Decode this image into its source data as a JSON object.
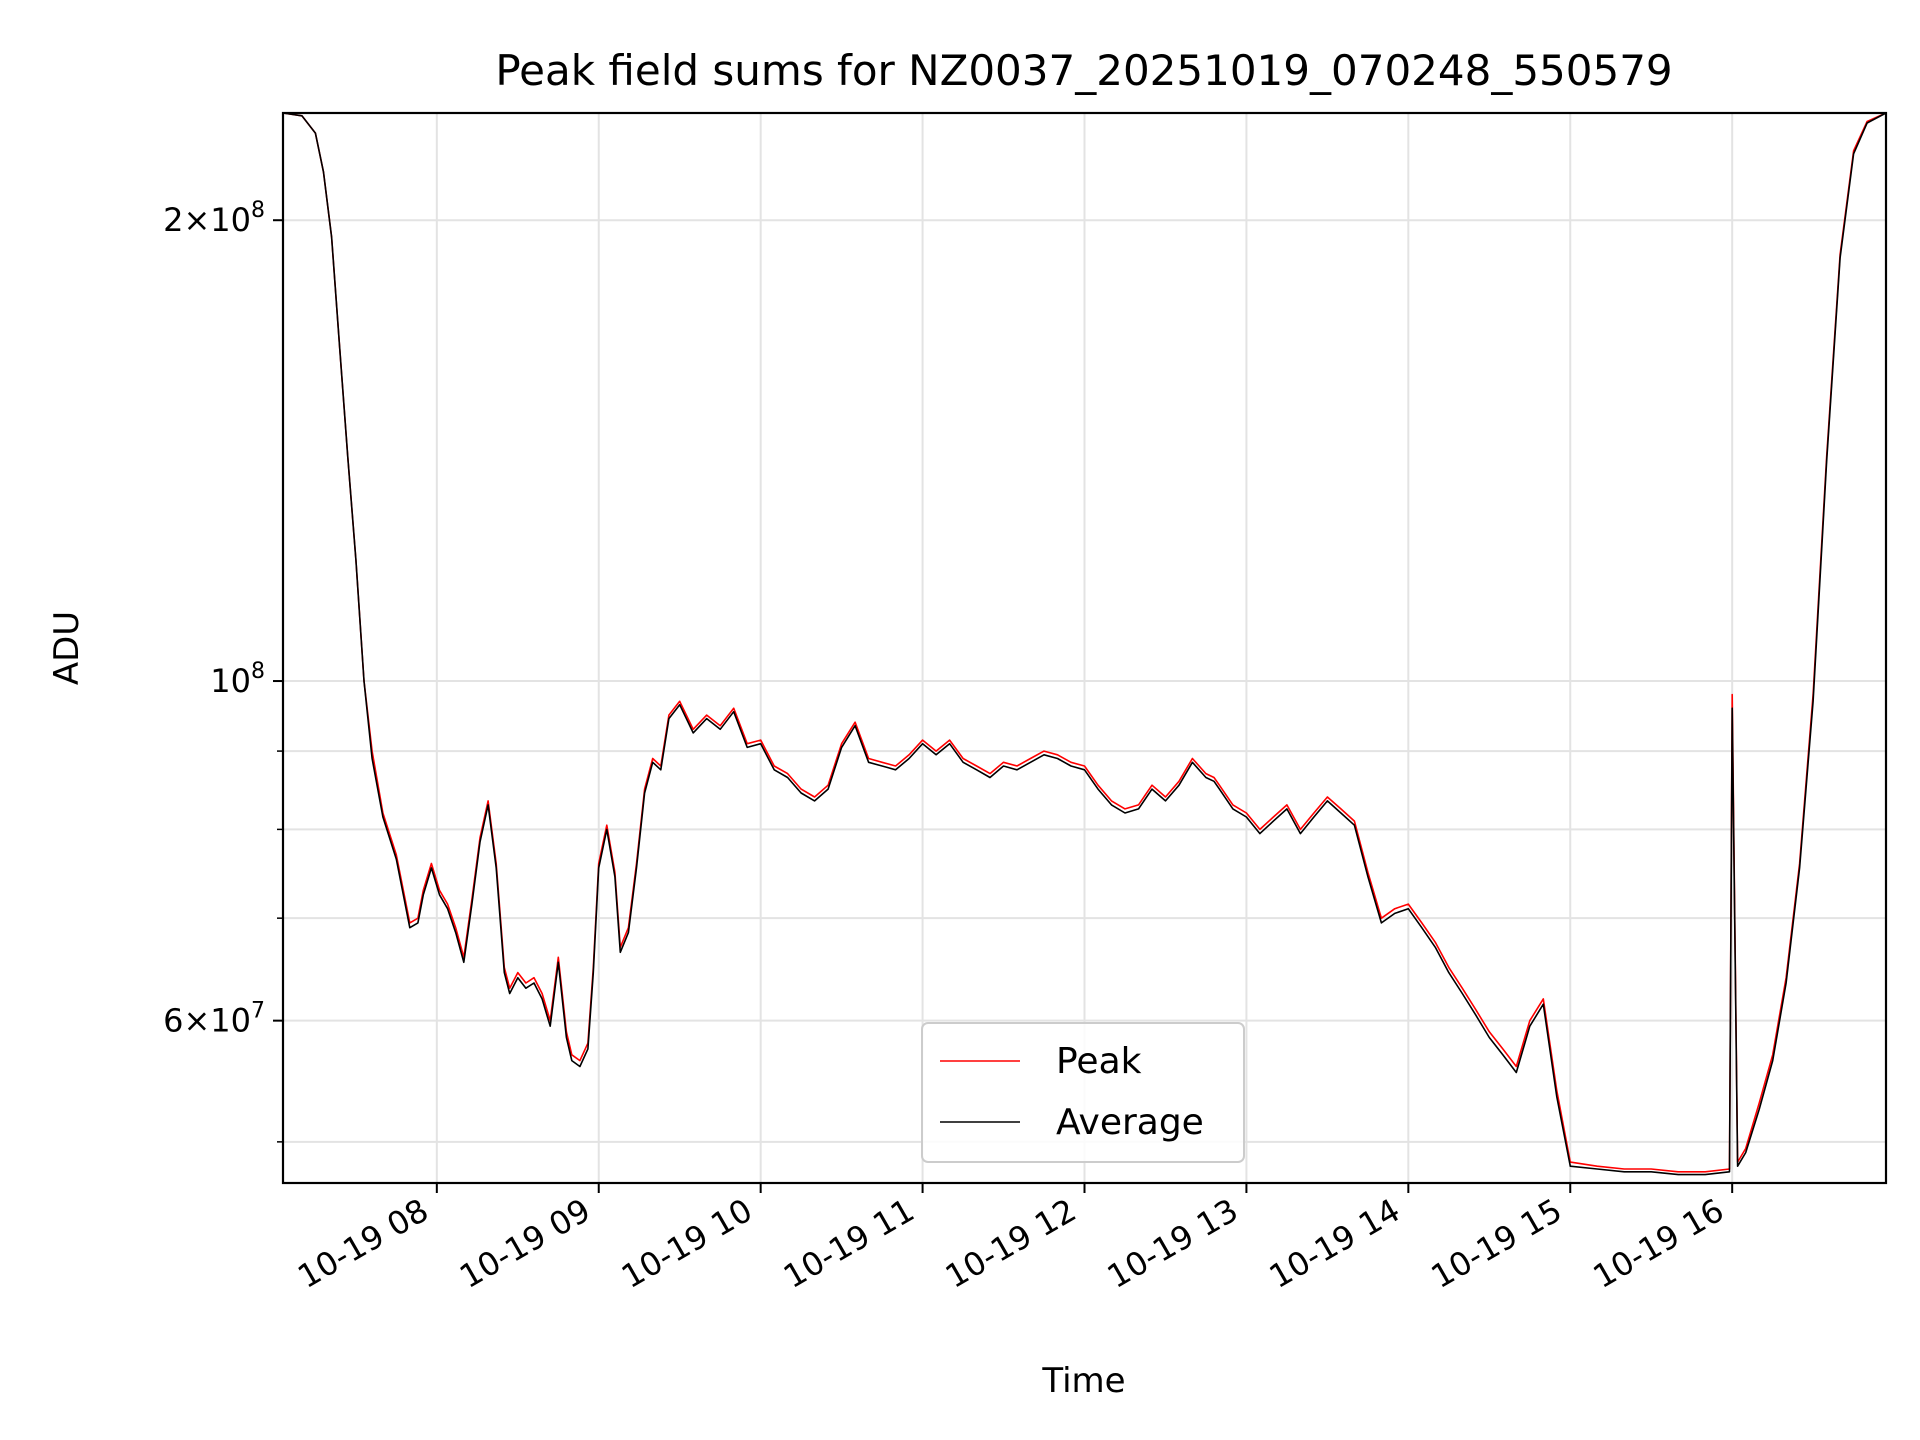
{
  "chart_data": {
    "type": "line",
    "title": "Peak field sums for NZ0037_20251019_070248_550579",
    "xlabel": "Time",
    "ylabel": "ADU",
    "y_scale": "log",
    "xlim": [
      "2025-10-19 07:03",
      "2025-10-19 16:57"
    ],
    "ylim": [
      47000000,
      235000000
    ],
    "grid": true,
    "legend_position": "lower-center",
    "x_ticks": [
      {
        "value": "2025-10-19 08:00",
        "label": "10-19 08"
      },
      {
        "value": "2025-10-19 09:00",
        "label": "10-19 09"
      },
      {
        "value": "2025-10-19 10:00",
        "label": "10-19 10"
      },
      {
        "value": "2025-10-19 11:00",
        "label": "10-19 11"
      },
      {
        "value": "2025-10-19 12:00",
        "label": "10-19 12"
      },
      {
        "value": "2025-10-19 13:00",
        "label": "10-19 13"
      },
      {
        "value": "2025-10-19 14:00",
        "label": "10-19 14"
      },
      {
        "value": "2025-10-19 15:00",
        "label": "10-19 15"
      },
      {
        "value": "2025-10-19 16:00",
        "label": "10-19 16"
      }
    ],
    "y_major_ticks": [
      {
        "value": 60000000,
        "mantissa": "6",
        "exponent": "7"
      },
      {
        "value": 100000000,
        "mantissa": "",
        "exponent": "8"
      },
      {
        "value": 200000000,
        "mantissa": "2",
        "exponent": "8"
      }
    ],
    "y_minor_ticks": [
      50000000,
      70000000,
      80000000,
      90000000
    ],
    "series": [
      {
        "name": "Peak",
        "color": "#ff0000",
        "x": [
          "07:03",
          "07:10",
          "07:15",
          "07:18",
          "07:21",
          "07:24",
          "07:27",
          "07:30",
          "07:33",
          "07:36",
          "07:40",
          "07:45",
          "07:50",
          "07:53",
          "07:55",
          "07:58",
          "08:01",
          "08:04",
          "08:07",
          "08:10",
          "08:13",
          "08:16",
          "08:19",
          "08:22",
          "08:25",
          "08:27",
          "08:30",
          "08:33",
          "08:36",
          "08:39",
          "08:42",
          "08:45",
          "08:48",
          "08:50",
          "08:53",
          "08:56",
          "08:58",
          "09:00",
          "09:03",
          "09:06",
          "09:08",
          "09:11",
          "09:14",
          "09:17",
          "09:20",
          "09:23",
          "09:26",
          "09:30",
          "09:35",
          "09:40",
          "09:45",
          "09:50",
          "09:55",
          "10:00",
          "10:05",
          "10:10",
          "10:15",
          "10:20",
          "10:25",
          "10:30",
          "10:35",
          "10:40",
          "10:45",
          "10:50",
          "10:55",
          "11:00",
          "11:05",
          "11:10",
          "11:15",
          "11:20",
          "11:25",
          "11:30",
          "11:35",
          "11:40",
          "11:45",
          "11:50",
          "11:55",
          "12:00",
          "12:05",
          "12:10",
          "12:15",
          "12:20",
          "12:25",
          "12:30",
          "12:35",
          "12:40",
          "12:45",
          "12:48",
          "12:50",
          "12:55",
          "13:00",
          "13:05",
          "13:10",
          "13:15",
          "13:20",
          "13:25",
          "13:30",
          "13:35",
          "13:40",
          "13:45",
          "13:50",
          "13:55",
          "14:00",
          "14:05",
          "14:10",
          "14:15",
          "14:20",
          "14:25",
          "14:30",
          "14:35",
          "14:40",
          "14:45",
          "14:50",
          "14:55",
          "15:00",
          "15:10",
          "15:20",
          "15:30",
          "15:40",
          "15:50",
          "15:59",
          "16:00",
          "16:02",
          "16:05",
          "16:10",
          "16:15",
          "16:20",
          "16:25",
          "16:30",
          "16:35",
          "16:40",
          "16:45",
          "16:50",
          "16:57"
        ],
        "values": [
          235000000,
          234000000,
          228000000,
          215000000,
          195000000,
          165000000,
          140000000,
          120000000,
          100000000,
          90000000,
          82000000,
          77000000,
          69500000,
          70000000,
          73000000,
          76000000,
          73000000,
          71500000,
          69000000,
          66000000,
          72000000,
          79000000,
          83500000,
          76000000,
          65000000,
          63000000,
          64500000,
          63500000,
          64000000,
          62500000,
          60000000,
          66000000,
          59000000,
          57000000,
          56500000,
          58000000,
          65000000,
          76000000,
          80500000,
          75000000,
          67000000,
          69000000,
          76000000,
          85000000,
          89000000,
          88000000,
          95000000,
          97000000,
          93000000,
          95000000,
          93500000,
          96000000,
          91000000,
          91500000,
          88000000,
          87000000,
          85000000,
          84000000,
          85500000,
          91000000,
          94000000,
          89000000,
          88500000,
          88000000,
          89500000,
          91500000,
          90000000,
          91500000,
          89000000,
          88000000,
          87000000,
          88500000,
          88000000,
          89000000,
          90000000,
          89500000,
          88500000,
          88000000,
          85500000,
          83500000,
          82500000,
          83000000,
          85500000,
          84000000,
          86000000,
          89000000,
          87000000,
          86500000,
          85500000,
          83000000,
          82000000,
          80000000,
          81500000,
          83000000,
          80000000,
          82000000,
          84000000,
          82500000,
          81000000,
          75000000,
          70000000,
          71000000,
          71500000,
          69500000,
          67500000,
          65000000,
          63000000,
          61000000,
          59000000,
          57500000,
          56000000,
          60000000,
          62000000,
          54000000,
          48500000,
          48200000,
          48000000,
          48000000,
          47800000,
          47800000,
          48000000,
          98000000,
          48500000,
          49500000,
          53000000,
          57000000,
          64000000,
          76000000,
          98000000,
          140000000,
          190000000,
          222000000,
          232000000,
          235000000
        ]
      },
      {
        "name": "Average",
        "color": "#000000",
        "x": [
          "07:03",
          "07:10",
          "07:15",
          "07:18",
          "07:21",
          "07:24",
          "07:27",
          "07:30",
          "07:33",
          "07:36",
          "07:40",
          "07:45",
          "07:50",
          "07:53",
          "07:55",
          "07:58",
          "08:01",
          "08:04",
          "08:07",
          "08:10",
          "08:13",
          "08:16",
          "08:19",
          "08:22",
          "08:25",
          "08:27",
          "08:30",
          "08:33",
          "08:36",
          "08:39",
          "08:42",
          "08:45",
          "08:48",
          "08:50",
          "08:53",
          "08:56",
          "08:58",
          "09:00",
          "09:03",
          "09:06",
          "09:08",
          "09:11",
          "09:14",
          "09:17",
          "09:20",
          "09:23",
          "09:26",
          "09:30",
          "09:35",
          "09:40",
          "09:45",
          "09:50",
          "09:55",
          "10:00",
          "10:05",
          "10:10",
          "10:15",
          "10:20",
          "10:25",
          "10:30",
          "10:35",
          "10:40",
          "10:45",
          "10:50",
          "10:55",
          "11:00",
          "11:05",
          "11:10",
          "11:15",
          "11:20",
          "11:25",
          "11:30",
          "11:35",
          "11:40",
          "11:45",
          "11:50",
          "11:55",
          "12:00",
          "12:05",
          "12:10",
          "12:15",
          "12:20",
          "12:25",
          "12:30",
          "12:35",
          "12:40",
          "12:45",
          "12:48",
          "12:50",
          "12:55",
          "13:00",
          "13:05",
          "13:10",
          "13:15",
          "13:20",
          "13:25",
          "13:30",
          "13:35",
          "13:40",
          "13:45",
          "13:50",
          "13:55",
          "14:00",
          "14:05",
          "14:10",
          "14:15",
          "14:20",
          "14:25",
          "14:30",
          "14:35",
          "14:40",
          "14:45",
          "14:50",
          "14:55",
          "15:00",
          "15:10",
          "15:20",
          "15:30",
          "15:40",
          "15:50",
          "15:59",
          "16:00",
          "16:02",
          "16:05",
          "16:10",
          "16:15",
          "16:20",
          "16:25",
          "16:30",
          "16:35",
          "16:40",
          "16:45",
          "16:50",
          "16:57"
        ],
        "values": [
          235000000,
          234000000,
          228000000,
          215000000,
          195000000,
          165000000,
          140000000,
          120000000,
          100000000,
          89000000,
          81500000,
          76500000,
          69000000,
          69500000,
          72500000,
          75500000,
          72500000,
          71000000,
          68500000,
          65500000,
          71500000,
          78500000,
          83000000,
          75500000,
          64500000,
          62500000,
          64000000,
          63000000,
          63500000,
          62000000,
          59500000,
          65500000,
          58500000,
          56500000,
          56000000,
          57500000,
          64500000,
          75500000,
          80000000,
          74500000,
          66500000,
          68500000,
          75500000,
          84500000,
          88500000,
          87500000,
          94500000,
          96500000,
          92500000,
          94500000,
          93000000,
          95500000,
          90500000,
          91000000,
          87500000,
          86500000,
          84500000,
          83500000,
          85000000,
          90500000,
          93500000,
          88500000,
          88000000,
          87500000,
          89000000,
          91000000,
          89500000,
          91000000,
          88500000,
          87500000,
          86500000,
          88000000,
          87500000,
          88500000,
          89500000,
          89000000,
          88000000,
          87500000,
          85000000,
          83000000,
          82000000,
          82500000,
          85000000,
          83500000,
          85500000,
          88500000,
          86500000,
          86000000,
          85000000,
          82500000,
          81500000,
          79500000,
          81000000,
          82500000,
          79500000,
          81500000,
          83500000,
          82000000,
          80500000,
          74500000,
          69500000,
          70500000,
          71000000,
          69000000,
          67000000,
          64500000,
          62500000,
          60500000,
          58500000,
          57000000,
          55500000,
          59500000,
          61500000,
          53500000,
          48200000,
          48000000,
          47800000,
          47800000,
          47600000,
          47600000,
          47800000,
          96000000,
          48200000,
          49200000,
          52500000,
          56500000,
          63500000,
          75500000,
          97000000,
          139000000,
          189000000,
          221000000,
          231500000,
          235000000
        ]
      }
    ]
  }
}
